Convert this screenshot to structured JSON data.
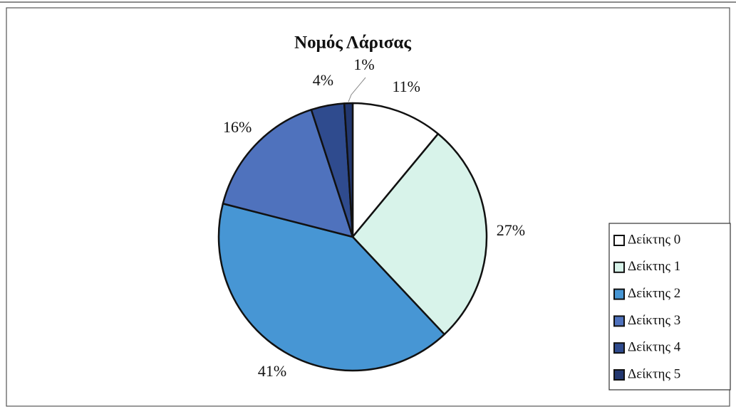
{
  "chart_data": {
    "type": "pie",
    "title": "Νομός Λάρισας",
    "categories": [
      "Δείκτης 0",
      "Δείκτης 1",
      "Δείκτης 2",
      "Δείκτης 3",
      "Δείκτης 4",
      "Δείκτης 5"
    ],
    "values": [
      11,
      27,
      41,
      16,
      4,
      1
    ],
    "value_labels": [
      "11%",
      "27%",
      "41%",
      "16%",
      "4%",
      "1%"
    ],
    "colors": [
      "#ffffff",
      "#d8f3ea",
      "#4796d4",
      "#4f72bd",
      "#2f4b8e",
      "#22376f"
    ],
    "legend": "right"
  }
}
